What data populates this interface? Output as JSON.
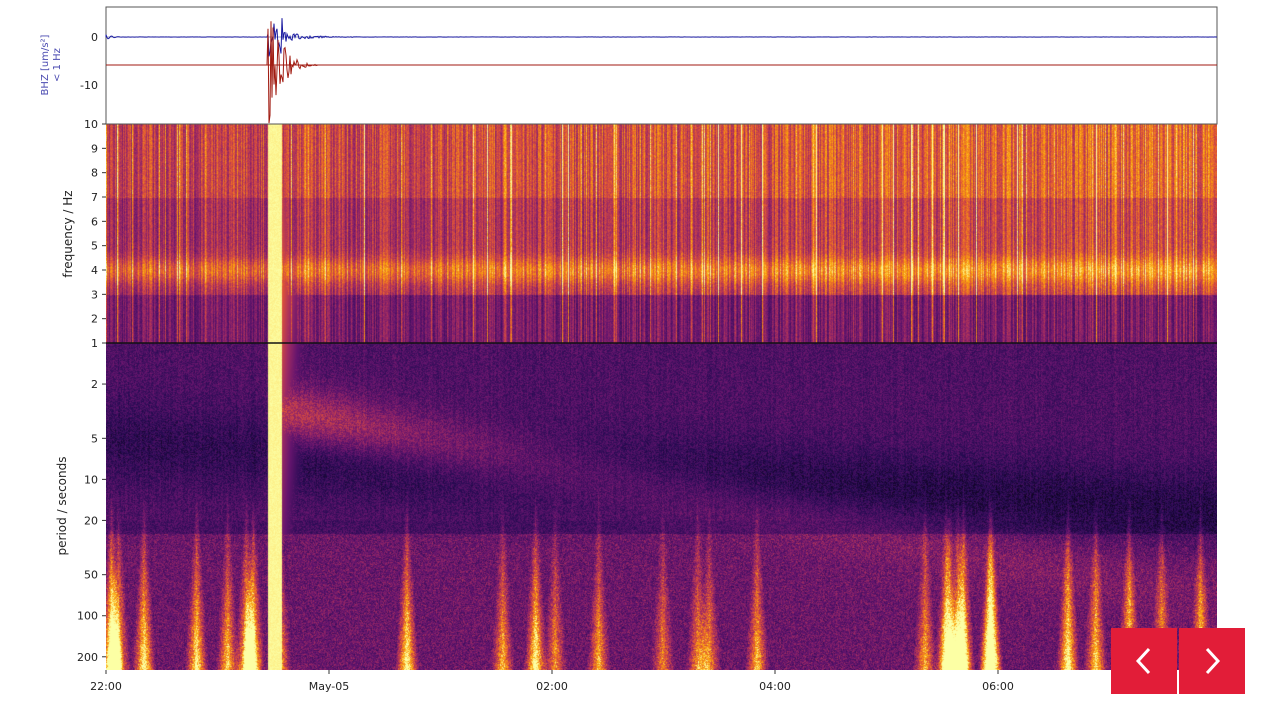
{
  "chart_data": {
    "type": "heatmap",
    "trace_panel": {
      "ylabel": "BHZ [um/s²]",
      "ylabel_sub": "< 1 Hz",
      "yticks": [
        0,
        -10
      ],
      "series_colors": {
        "raw": "#1a1aa0",
        "filtered": "#a01a10"
      }
    },
    "frequency_panel": {
      "ylabel": "frequency / Hz",
      "yticks": [
        10,
        9,
        8,
        7,
        6,
        5,
        4,
        3,
        2,
        1
      ],
      "ylim": [
        1,
        10
      ],
      "scale": "linear"
    },
    "period_panel": {
      "ylabel": "period / seconds",
      "yticks": [
        2,
        5,
        10,
        20,
        50,
        100,
        200
      ],
      "ylim": [
        1,
        250
      ],
      "scale": "log"
    },
    "xticks": [
      "22:00",
      "May-05",
      "02:00",
      "04:00",
      "06:00"
    ],
    "colormap": "inferno",
    "event_time": "23:27"
  },
  "nav": {
    "prev_icon": "chevron-left-icon",
    "next_icon": "chevron-right-icon",
    "color": "#e21d38"
  }
}
